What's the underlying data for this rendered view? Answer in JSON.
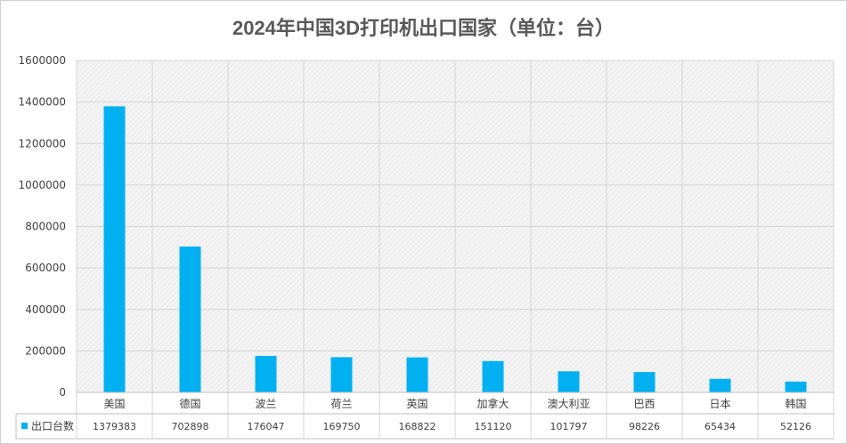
{
  "chart_data": {
    "type": "bar",
    "title": "2024年中国3D打印机出口国家（单位：台）",
    "categories": [
      "美国",
      "德国",
      "波兰",
      "荷兰",
      "英国",
      "加拿大",
      "澳大利亚",
      "巴西",
      "日本",
      "韩国"
    ],
    "series": [
      {
        "name": "出口台数",
        "values": [
          1379383,
          702898,
          176047,
          169750,
          168822,
          151120,
          101797,
          98226,
          65434,
          52126
        ]
      }
    ],
    "y_ticks": [
      "0",
      "200000",
      "400000",
      "600000",
      "800000",
      "1000000",
      "1200000",
      "1400000",
      "1600000"
    ],
    "ylim": [
      0,
      1600000
    ],
    "grid": true,
    "legend": "data-table-left",
    "bar_color": "#00b0f0"
  }
}
